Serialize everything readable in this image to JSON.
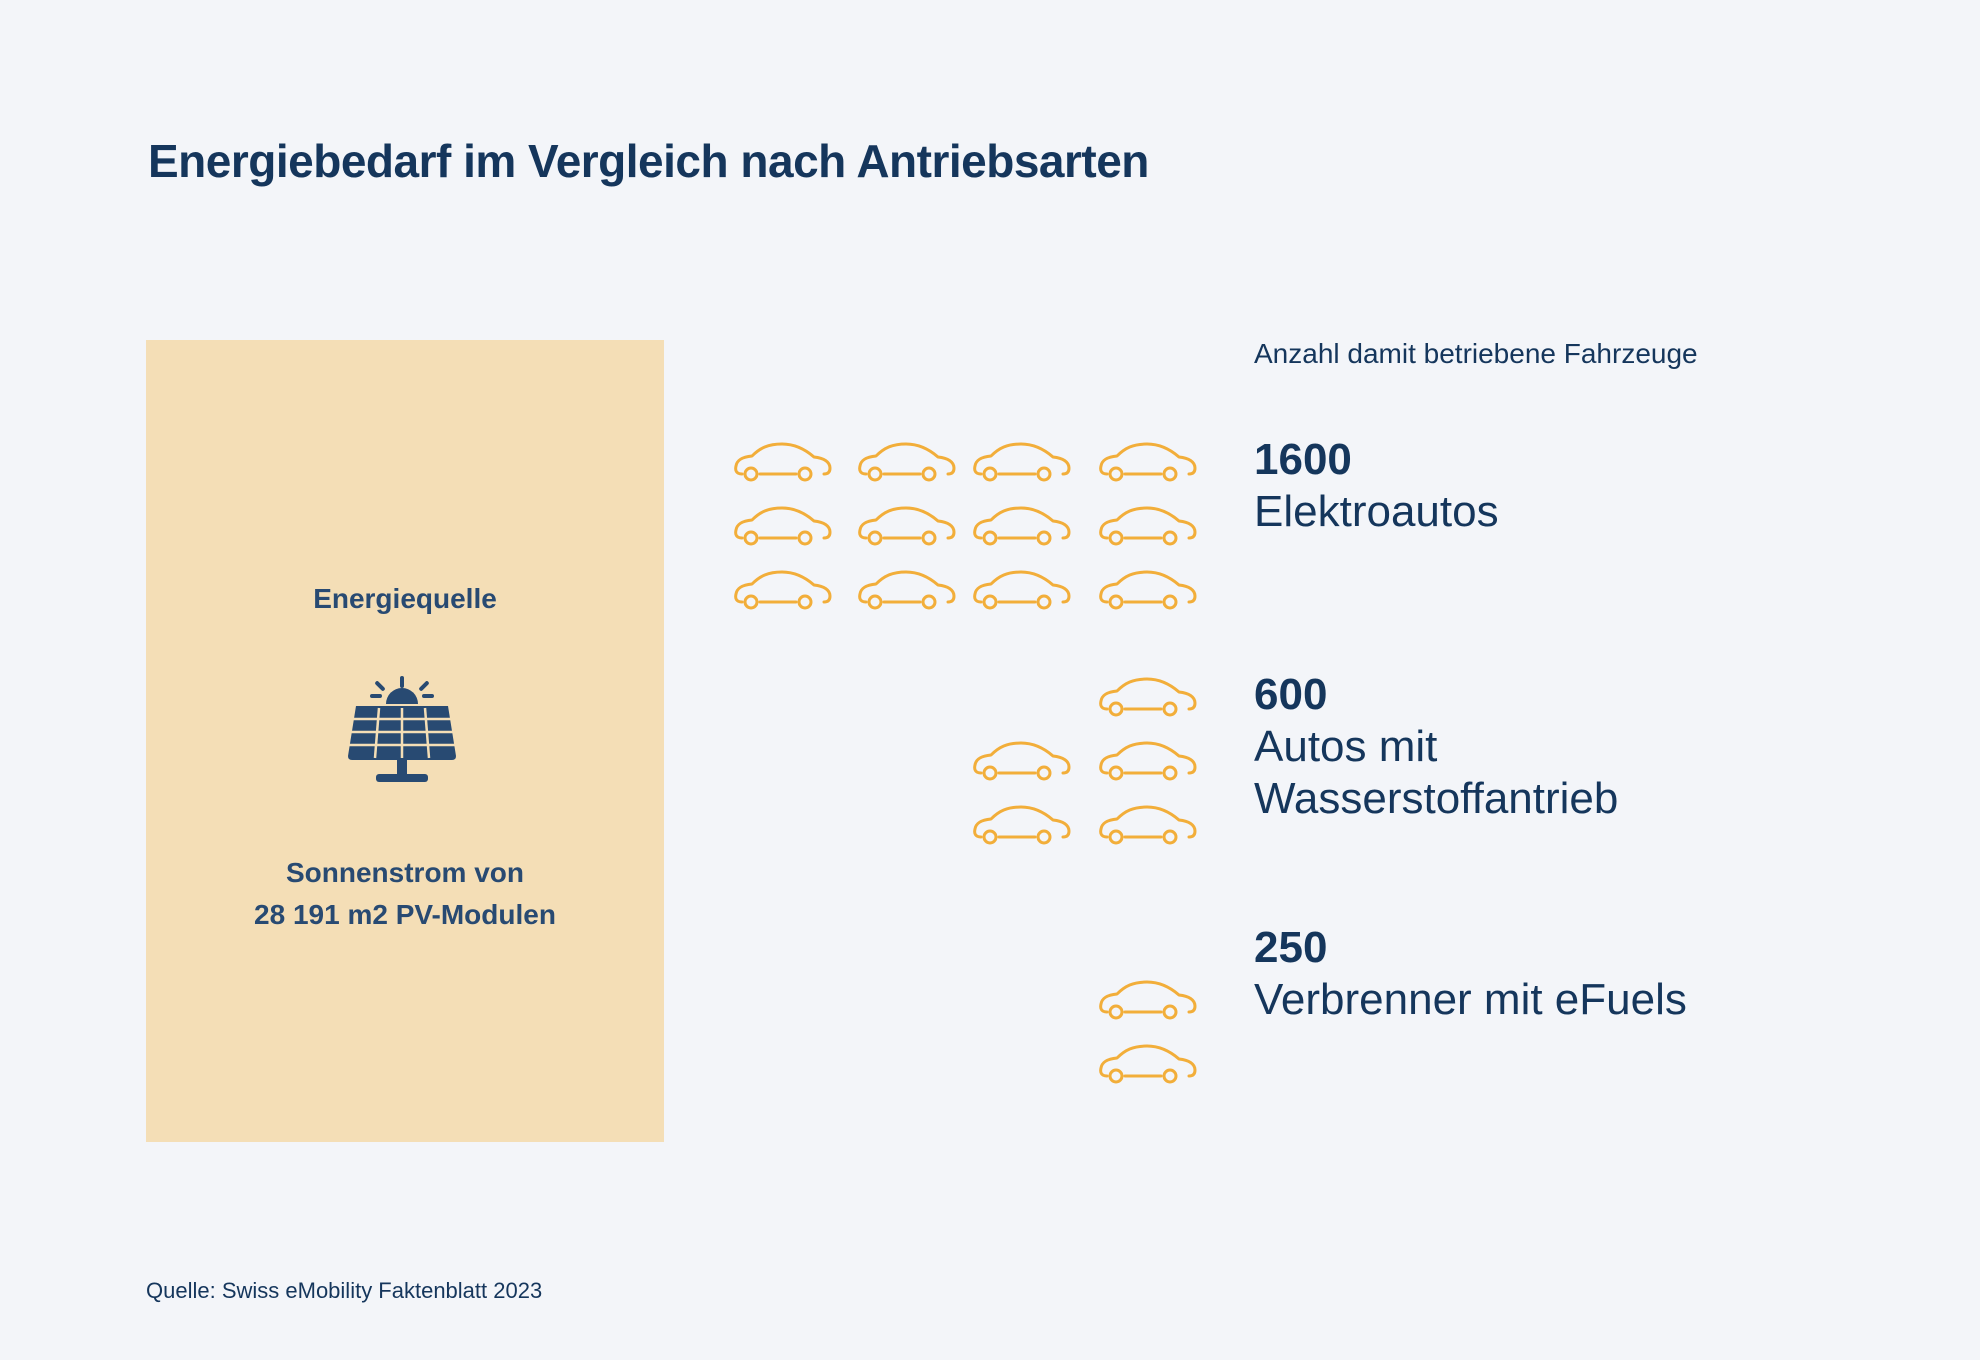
{
  "title": "Energiebedarf im Vergleich nach Antriebsarten",
  "source_panel": {
    "heading": "Energiequelle",
    "icon": "solar-panel-icon",
    "description_line1": "Sonnenstrom von",
    "description_line2": "28 191 m2 PV-Modulen",
    "background_color": "#f4deb6"
  },
  "vehicles_label": "Anzahl damit betriebene Fahrzeuge",
  "colors": {
    "text": "#15365c",
    "car_icon": "#f2ae3a",
    "background": "#f3f5f9"
  },
  "chart_data": {
    "type": "pictogram",
    "unit": "Fahrzeuge",
    "categories": [
      "Elektroautos",
      "Autos mit Wasserstoffantrieb",
      "Verbrenner mit eFuels"
    ],
    "values": [
      1600,
      600,
      250
    ],
    "icon_counts": [
      12,
      5,
      2
    ],
    "icon": "car-icon"
  },
  "groups": [
    {
      "count": "1600",
      "label_line1": "Elektroautos",
      "label_line2": ""
    },
    {
      "count": "600",
      "label_line1": "Autos mit",
      "label_line2": "Wasserstoffantrieb"
    },
    {
      "count": "250",
      "label_line1": "Verbrenner mit eFuels",
      "label_line2": ""
    }
  ],
  "footer": "Quelle: Swiss eMobility Faktenblatt 2023"
}
